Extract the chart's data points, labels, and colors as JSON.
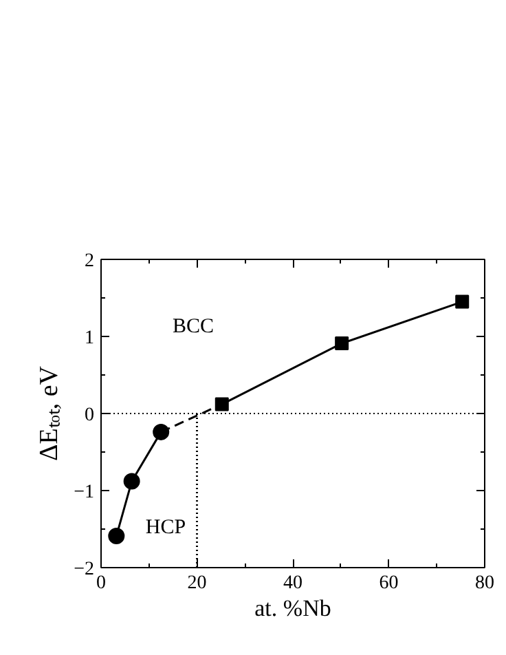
{
  "chart_data": {
    "type": "line",
    "xlabel": "at. %Nb",
    "ylabel": "ΔEₜₒₜ, eV",
    "xlim": [
      0,
      80
    ],
    "ylim": [
      -2,
      2
    ],
    "xticks": [
      0,
      20,
      40,
      60,
      80
    ],
    "yticks": [
      -2,
      -1,
      0,
      1,
      2
    ],
    "grid": false,
    "series": [
      {
        "color": "#000000",
        "x": [
          3.2,
          6.4,
          12.5
        ],
        "values": [
          -1.59,
          -0.88,
          -0.24
        ],
        "marker": "circle",
        "line_style": "solid"
      },
      {
        "color": "#000000",
        "x": [
          12.5,
          25.2
        ],
        "values": [
          -0.24,
          0.12
        ],
        "line_style": "dashed"
      },
      {
        "color": "#000000",
        "x": [
          25.2,
          50.2,
          75.3
        ],
        "values": [
          0.12,
          0.91,
          1.45
        ],
        "marker": "square",
        "line_style": "solid"
      },
      {
        "color": "#000000",
        "x": [
          20,
          20
        ],
        "values": [
          -2,
          0
        ],
        "line_style": "dotted"
      }
    ],
    "ref_lines": [
      {
        "axis": "y",
        "value": 0,
        "line_style": "dotted",
        "color": "#000000"
      }
    ],
    "annotations": [
      "BCC",
      "HCP"
    ]
  }
}
